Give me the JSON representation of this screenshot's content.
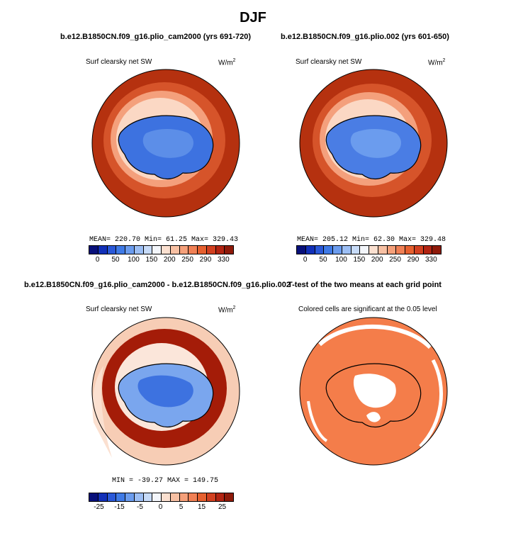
{
  "title": "DJF",
  "panels": [
    {
      "title": "b.e12.B1850CN.f09_g16.plio_cam2000 (yrs 691-720)",
      "variable": "Surf clearsky net SW",
      "units": "W/m",
      "units_sup": "2",
      "stats": "MEAN= 220.70  Min=  61.25  Max= 329.43"
    },
    {
      "title": "b.e12.B1850CN.f09_g16.plio.002 (yrs 601-650)",
      "variable": "Surf clearsky net SW",
      "units": "W/m",
      "units_sup": "2",
      "stats": "MEAN= 205.12  Min=  62.30  Max= 329.48"
    },
    {
      "title": "b.e12.B1850CN.f09_g16.plio_cam2000 - b.e12.B1850CN.f09_g16.plio.002",
      "variable": "Surf clearsky net SW",
      "units": "W/m",
      "units_sup": "2",
      "stats": "MIN = -39.27  MAX = 149.75"
    },
    {
      "title": "T-test of the two means at each grid point",
      "variable": "Colored cells are significant at the 0.05 level"
    }
  ],
  "colorbar_abs": {
    "labels": [
      "0",
      "50",
      "100",
      "150",
      "200",
      "250",
      "290",
      "330"
    ],
    "colors": [
      "#08107a",
      "#1230b8",
      "#2a58d8",
      "#3f7ae6",
      "#6b9cee",
      "#9cbef4",
      "#c7dbf8",
      "#f3f6fb",
      "#fbe0d0",
      "#f7c0a3",
      "#f5a07a",
      "#f08055",
      "#e6602f",
      "#d24020",
      "#b22412",
      "#8e1a0a"
    ]
  },
  "colorbar_diff": {
    "labels": [
      "-25",
      "-15",
      "-5",
      "0",
      "5",
      "15",
      "25"
    ],
    "colors": [
      "#08107a",
      "#1230b8",
      "#2a58d8",
      "#3f7ae6",
      "#6b9cee",
      "#9cbef4",
      "#c7dbf8",
      "#f3f6fb",
      "#fbe0d0",
      "#f7c0a3",
      "#f5a07a",
      "#f08055",
      "#e6602f",
      "#d24020",
      "#b22412",
      "#8e1a0a"
    ]
  },
  "map_colors": {
    "ocean_outer": "#b5310f",
    "ocean_mid": "#d6542a",
    "ring_light": "#f4a07c",
    "ice_edge": "#fbd8c4",
    "ice_blue": "#3d72e0",
    "ice_light": "#7aa6ee",
    "diff_dark": "#a41c08",
    "diff_light": "#f7cdb5",
    "ttest": "#f47d4a"
  }
}
